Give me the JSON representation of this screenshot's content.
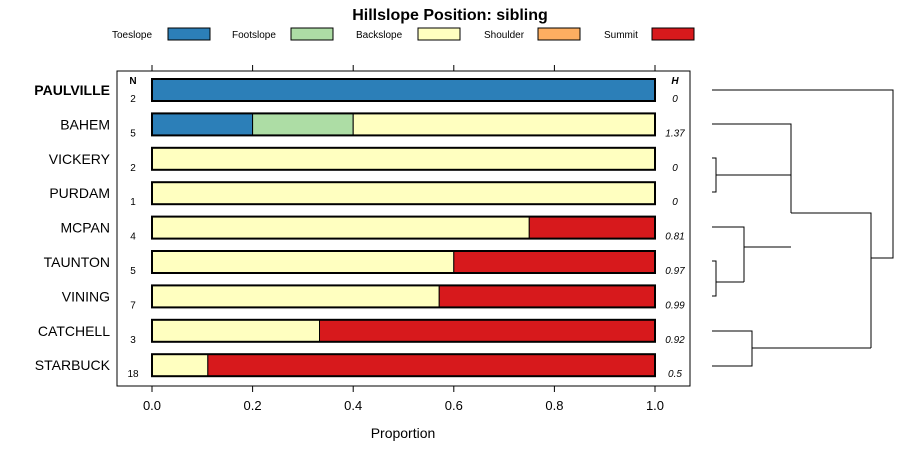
{
  "chart_data": {
    "type": "bar",
    "orientation": "horizontal",
    "stacked": true,
    "title": "Hillslope Position: sibling",
    "xlabel": "Proportion",
    "ylabel": "",
    "xlim": [
      0,
      1
    ],
    "x_ticks": [
      "0.0",
      "0.2",
      "0.4",
      "0.6",
      "0.8",
      "1.0"
    ],
    "x_tick_values": [
      0,
      0.2,
      0.4,
      0.6,
      0.8,
      1.0
    ],
    "n_header": "N",
    "h_header": "H",
    "legend": [
      {
        "name": "Toeslope",
        "color": "#2C7FB8"
      },
      {
        "name": "Footslope",
        "color": "#ADDDA5"
      },
      {
        "name": "Backslope",
        "color": "#FFFFC0"
      },
      {
        "name": "Shoulder",
        "color": "#FDAE61"
      },
      {
        "name": "Summit",
        "color": "#D7191C"
      }
    ],
    "categories": [
      "PAULVILLE",
      "BAHEM",
      "VICKERY",
      "PURDAM",
      "MCPAN",
      "TAUNTON",
      "VINING",
      "CATCHELL",
      "STARBUCK"
    ],
    "highlighted": "PAULVILLE",
    "n": [
      "2",
      "5",
      "2",
      "1",
      "4",
      "5",
      "7",
      "3",
      "18"
    ],
    "h": [
      "0",
      "1.37",
      "0",
      "0",
      "0.81",
      "0.97",
      "0.99",
      "0.92",
      "0.5"
    ],
    "series": [
      {
        "name": "Toeslope",
        "values": [
          1.0,
          0.2,
          0,
          0,
          0,
          0,
          0,
          0,
          0
        ]
      },
      {
        "name": "Footslope",
        "values": [
          0,
          0.2,
          0,
          0,
          0,
          0,
          0,
          0,
          0
        ]
      },
      {
        "name": "Backslope",
        "values": [
          0,
          0.6,
          1.0,
          1.0,
          0.75,
          0.6,
          0.571,
          0.333,
          0.111
        ]
      },
      {
        "name": "Shoulder",
        "values": [
          0,
          0,
          0,
          0,
          0,
          0,
          0,
          0,
          0
        ]
      },
      {
        "name": "Summit",
        "values": [
          0,
          0,
          0,
          0,
          0.25,
          0.4,
          0.429,
          0.667,
          0.889
        ]
      }
    ]
  }
}
